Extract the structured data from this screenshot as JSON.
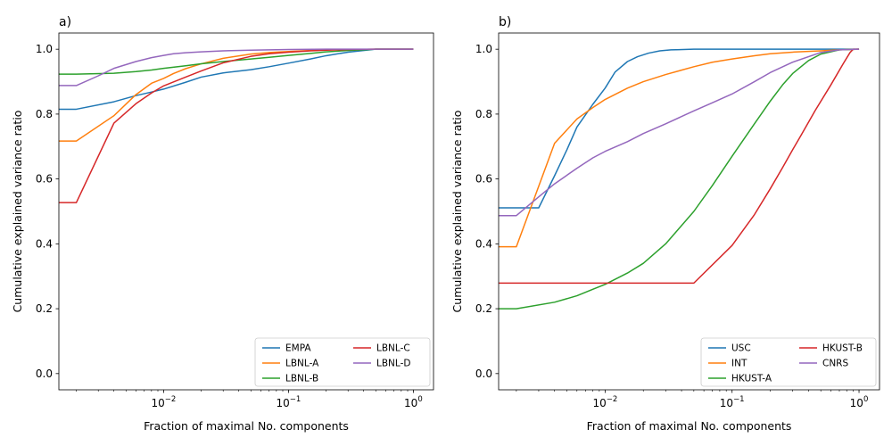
{
  "chart_data": [
    {
      "type": "line",
      "panel_label": "a)",
      "xlabel": "Fraction of maximal No. components",
      "ylabel": "Cumulative explained variance ratio",
      "xscale": "log",
      "xlim": [
        0.00145,
        1.45
      ],
      "ylim": [
        -0.05,
        1.05
      ],
      "xticks": [
        {
          "value": 0.01,
          "base": "10",
          "exp": "−2"
        },
        {
          "value": 0.1,
          "base": "10",
          "exp": "−1"
        },
        {
          "value": 1,
          "base": "10",
          "exp": "0"
        }
      ],
      "yticks": [
        {
          "value": 0,
          "label": "0.0"
        },
        {
          "value": 0.2,
          "label": "0.2"
        },
        {
          "value": 0.4,
          "label": "0.4"
        },
        {
          "value": 0.6,
          "label": "0.6"
        },
        {
          "value": 0.8,
          "label": "0.8"
        },
        {
          "value": 1,
          "label": "1.0"
        }
      ],
      "legend_position": "lower-right",
      "legend_columns": 2,
      "series": [
        {
          "name": "EMPA",
          "color": "#1f77b4",
          "x": [
            0.001,
            0.002,
            0.004,
            0.006,
            0.008,
            0.01,
            0.015,
            0.02,
            0.03,
            0.05,
            0.07,
            0.1,
            0.15,
            0.2,
            0.3,
            0.5,
            0.7,
            1.0
          ],
          "y": [
            0.815,
            0.815,
            0.838,
            0.857,
            0.868,
            0.877,
            0.898,
            0.914,
            0.927,
            0.937,
            0.946,
            0.957,
            0.97,
            0.98,
            0.991,
            1.0,
            1.0,
            1.0
          ]
        },
        {
          "name": "LBNL-A",
          "color": "#ff7f0e",
          "x": [
            0.001,
            0.002,
            0.004,
            0.006,
            0.008,
            0.01,
            0.012,
            0.015,
            0.02,
            0.03,
            0.05,
            0.07,
            0.1,
            0.15,
            0.2,
            0.3,
            0.5,
            1.0
          ],
          "y": [
            0.717,
            0.717,
            0.795,
            0.86,
            0.895,
            0.91,
            0.925,
            0.94,
            0.955,
            0.972,
            0.985,
            0.99,
            0.993,
            0.996,
            0.998,
            0.999,
            1.0,
            1.0
          ]
        },
        {
          "name": "LBNL-B",
          "color": "#2ca02c",
          "x": [
            0.001,
            0.002,
            0.004,
            0.006,
            0.008,
            0.01,
            0.015,
            0.02,
            0.03,
            0.05,
            0.07,
            0.1,
            0.15,
            0.2,
            0.3,
            0.5,
            1.0
          ],
          "y": [
            0.923,
            0.923,
            0.926,
            0.931,
            0.936,
            0.941,
            0.949,
            0.955,
            0.962,
            0.97,
            0.975,
            0.981,
            0.987,
            0.992,
            0.996,
            1.0,
            1.0
          ]
        },
        {
          "name": "LBNL-C",
          "color": "#d62728",
          "x": [
            0.001,
            0.002,
            0.004,
            0.006,
            0.008,
            0.01,
            0.015,
            0.02,
            0.03,
            0.05,
            0.07,
            0.1,
            0.15,
            0.2,
            0.3,
            0.5,
            1.0
          ],
          "y": [
            0.527,
            0.527,
            0.772,
            0.832,
            0.865,
            0.887,
            0.914,
            0.933,
            0.958,
            0.978,
            0.986,
            0.991,
            0.995,
            0.997,
            0.999,
            1.0,
            1.0
          ]
        },
        {
          "name": "LBNL-D",
          "color": "#9467bd",
          "x": [
            0.001,
            0.002,
            0.003,
            0.004,
            0.006,
            0.008,
            0.01,
            0.012,
            0.015,
            0.02,
            0.03,
            0.05,
            0.1,
            0.2,
            0.5,
            1.0
          ],
          "y": [
            0.888,
            0.888,
            0.918,
            0.941,
            0.962,
            0.974,
            0.981,
            0.986,
            0.989,
            0.992,
            0.995,
            0.997,
            0.999,
            1.0,
            1.0,
            1.0
          ]
        }
      ]
    },
    {
      "type": "line",
      "panel_label": "b)",
      "xlabel": "Fraction of maximal No. components",
      "ylabel": "Cumulative explained variance ratio",
      "xscale": "log",
      "xlim": [
        0.00145,
        1.45
      ],
      "ylim": [
        -0.05,
        1.05
      ],
      "xticks": [
        {
          "value": 0.01,
          "base": "10",
          "exp": "−2"
        },
        {
          "value": 0.1,
          "base": "10",
          "exp": "−1"
        },
        {
          "value": 1,
          "base": "10",
          "exp": "0"
        }
      ],
      "yticks": [
        {
          "value": 0,
          "label": "0.0"
        },
        {
          "value": 0.2,
          "label": "0.2"
        },
        {
          "value": 0.4,
          "label": "0.4"
        },
        {
          "value": 0.6,
          "label": "0.6"
        },
        {
          "value": 0.8,
          "label": "0.8"
        },
        {
          "value": 1,
          "label": "1.0"
        }
      ],
      "legend_position": "lower-right",
      "legend_columns": 2,
      "series": [
        {
          "name": "USC",
          "color": "#1f77b4",
          "x": [
            0.001,
            0.002,
            0.003,
            0.004,
            0.005,
            0.006,
            0.008,
            0.01,
            0.012,
            0.015,
            0.018,
            0.022,
            0.027,
            0.033,
            0.05,
            0.1,
            0.2,
            0.5,
            1.0
          ],
          "y": [
            0.511,
            0.511,
            0.511,
            0.61,
            0.69,
            0.76,
            0.83,
            0.88,
            0.93,
            0.962,
            0.977,
            0.988,
            0.995,
            0.998,
            1.0,
            1.0,
            1.0,
            1.0,
            1.0
          ]
        },
        {
          "name": "INT",
          "color": "#ff7f0e",
          "x": [
            0.001,
            0.002,
            0.004,
            0.006,
            0.008,
            0.01,
            0.015,
            0.02,
            0.03,
            0.05,
            0.07,
            0.1,
            0.15,
            0.2,
            0.3,
            0.5,
            0.7,
            1.0
          ],
          "y": [
            0.391,
            0.391,
            0.71,
            0.785,
            0.82,
            0.845,
            0.88,
            0.9,
            0.922,
            0.946,
            0.96,
            0.97,
            0.98,
            0.986,
            0.991,
            0.995,
            0.998,
            1.0
          ]
        },
        {
          "name": "HKUST-A",
          "color": "#2ca02c",
          "x": [
            0.001,
            0.002,
            0.004,
            0.006,
            0.008,
            0.01,
            0.015,
            0.02,
            0.03,
            0.05,
            0.07,
            0.1,
            0.15,
            0.2,
            0.25,
            0.3,
            0.4,
            0.5,
            0.7,
            1.0
          ],
          "y": [
            0.2,
            0.2,
            0.22,
            0.24,
            0.26,
            0.275,
            0.31,
            0.34,
            0.4,
            0.5,
            0.58,
            0.67,
            0.77,
            0.84,
            0.89,
            0.925,
            0.965,
            0.985,
            0.998,
            1.0
          ]
        },
        {
          "name": "HKUST-B",
          "color": "#d62728",
          "x": [
            0.001,
            0.01,
            0.03,
            0.05,
            0.1,
            0.15,
            0.2,
            0.25,
            0.3,
            0.35,
            0.45,
            0.6,
            0.75,
            0.85,
            0.9,
            1.0
          ],
          "y": [
            0.279,
            0.279,
            0.279,
            0.279,
            0.395,
            0.49,
            0.57,
            0.635,
            0.69,
            0.735,
            0.81,
            0.89,
            0.955,
            0.99,
            1.0,
            1.0
          ]
        },
        {
          "name": "CNRS",
          "color": "#9467bd",
          "x": [
            0.001,
            0.002,
            0.003,
            0.004,
            0.006,
            0.008,
            0.01,
            0.015,
            0.02,
            0.03,
            0.05,
            0.07,
            0.1,
            0.15,
            0.2,
            0.3,
            0.5,
            0.7,
            1.0
          ],
          "y": [
            0.487,
            0.487,
            0.545,
            0.585,
            0.633,
            0.665,
            0.685,
            0.715,
            0.74,
            0.77,
            0.81,
            0.835,
            0.862,
            0.9,
            0.928,
            0.96,
            0.99,
            0.998,
            1.0
          ]
        }
      ]
    }
  ]
}
